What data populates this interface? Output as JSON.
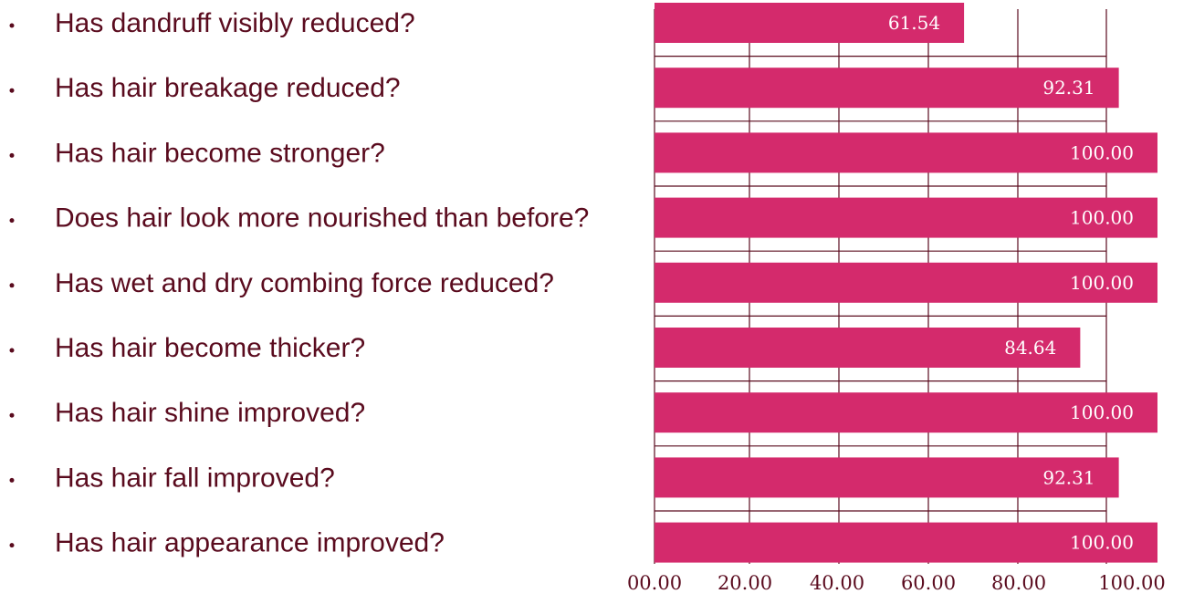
{
  "chart_data": {
    "type": "bar",
    "orientation": "horizontal",
    "categories": [
      "Has dandruff visibly reduced?",
      "Has hair breakage reduced?",
      "Has hair become stronger?",
      "Does hair look more nourished than before?",
      "Has wet and dry combing force reduced?",
      "Has hair become thicker?",
      "Has hair shine improved?",
      "Has hair fall improved?",
      "Has hair appearance improved?"
    ],
    "values": [
      61.54,
      92.31,
      100.0,
      100.0,
      100.0,
      84.64,
      100.0,
      92.31,
      100.0
    ],
    "value_labels": [
      "61.54",
      "92.31",
      "100.00",
      "100.00",
      "100.00",
      "84.64",
      "100.00",
      "92.31",
      "100.00"
    ],
    "x_ticks": [
      "00.00",
      "20.00",
      "40.00",
      "60.00",
      "80.00",
      "100.00"
    ],
    "xlim": [
      0,
      100
    ],
    "grid": true,
    "bar_color": "#d42a6c",
    "text_color": "#5a0b1e",
    "value_label_color": "#ffffff"
  }
}
